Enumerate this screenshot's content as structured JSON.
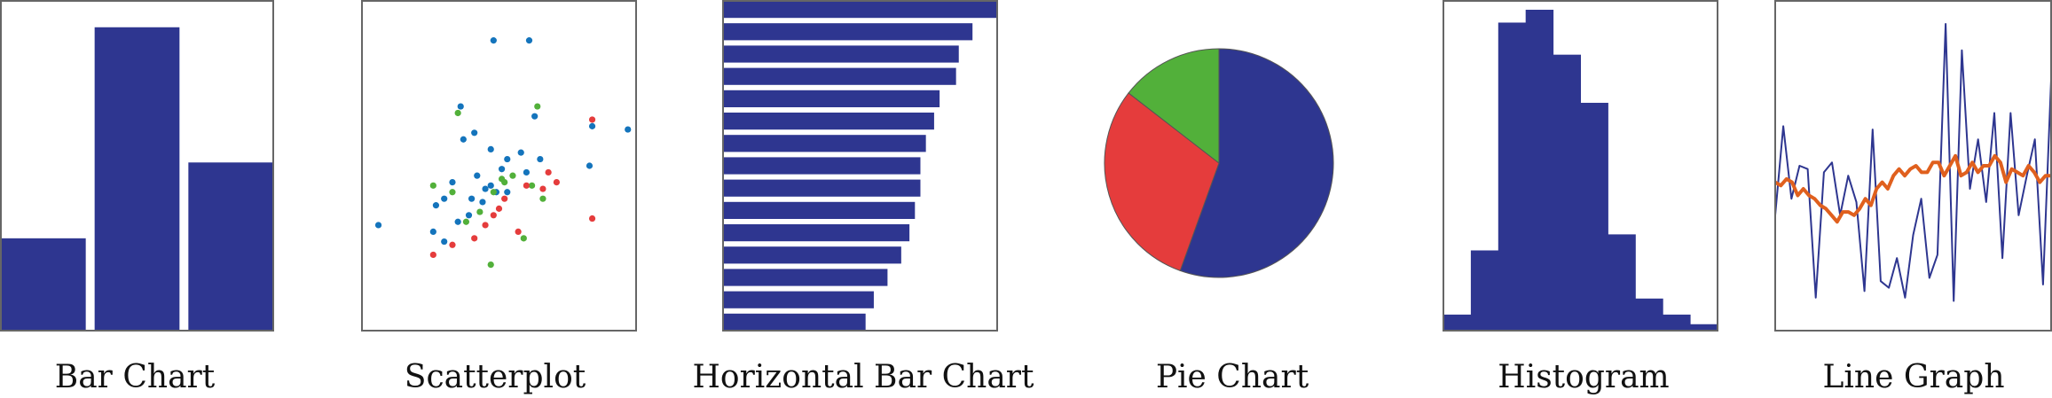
{
  "colors": {
    "navy": "#2E3690",
    "red": "#E53C3C",
    "green": "#52B03A",
    "blue": "#1474BC",
    "orange": "#E0601E",
    "frame": "#666666"
  },
  "panels": {
    "bar": {
      "caption": "Bar Chart"
    },
    "scatter": {
      "caption": "Scatterplot"
    },
    "hbar": {
      "caption": "Horizontal Bar Chart"
    },
    "pie": {
      "caption": "Pie Chart"
    },
    "histogram": {
      "caption": "Histogram"
    },
    "line": {
      "caption": "Line Graph"
    }
  },
  "chart_data": [
    {
      "type": "bar",
      "title": "Bar Chart",
      "categories": [
        "",
        "",
        ""
      ],
      "values": [
        28,
        92,
        51
      ],
      "ylim": [
        0,
        100
      ],
      "grid": false
    },
    {
      "type": "scatter",
      "title": "Scatterplot",
      "xlim": [
        0,
        100
      ],
      "ylim": [
        0,
        100
      ],
      "grid": false,
      "series": [
        {
          "color": "blue",
          "points": [
            [
              48,
              88
            ],
            [
              61,
              88
            ],
            [
              6,
              32
            ],
            [
              83,
              50
            ],
            [
              97,
              61
            ],
            [
              36,
              68
            ],
            [
              41,
              60
            ],
            [
              27,
              38
            ],
            [
              47,
              55
            ],
            [
              53,
              52
            ],
            [
              42,
              47
            ],
            [
              33,
              45
            ],
            [
              30,
              40
            ],
            [
              35,
              33
            ],
            [
              26,
              30
            ],
            [
              39,
              35
            ],
            [
              47,
              44
            ],
            [
              53,
              42
            ],
            [
              60,
              48
            ],
            [
              65,
              52
            ],
            [
              45,
              43
            ],
            [
              49,
              42
            ],
            [
              30,
              27
            ],
            [
              44,
              39
            ],
            [
              63,
              65
            ],
            [
              84,
              62
            ],
            [
              37,
              58
            ],
            [
              58,
              54
            ],
            [
              40,
              40
            ],
            [
              51,
              49
            ]
          ]
        },
        {
          "color": "green",
          "points": [
            [
              35,
              66
            ],
            [
              64,
              68
            ],
            [
              26,
              44
            ],
            [
              33,
              42
            ],
            [
              51,
              46
            ],
            [
              52,
              45
            ],
            [
              48,
              42
            ],
            [
              62,
              44
            ],
            [
              59,
              28
            ],
            [
              38,
              33
            ],
            [
              43,
              36
            ],
            [
              47,
              20
            ],
            [
              55,
              47
            ],
            [
              66,
              40
            ]
          ]
        },
        {
          "color": "red",
          "points": [
            [
              84,
              64
            ],
            [
              71,
              45
            ],
            [
              68,
              48
            ],
            [
              52,
              40
            ],
            [
              50,
              37
            ],
            [
              45,
              32
            ],
            [
              33,
              26
            ],
            [
              26,
              23
            ],
            [
              60,
              44
            ],
            [
              48,
              35
            ],
            [
              84,
              34
            ],
            [
              57,
              30
            ],
            [
              41,
              28
            ],
            [
              66,
              43
            ]
          ]
        }
      ]
    },
    {
      "type": "bar",
      "orientation": "horizontal",
      "title": "Horizontal Bar Chart",
      "values": [
        100,
        91,
        86,
        85,
        79,
        77,
        74,
        72,
        72,
        70,
        68,
        65,
        60,
        55,
        52
      ],
      "xlim": [
        0,
        100
      ],
      "grid": false
    },
    {
      "type": "pie",
      "title": "Pie Chart",
      "slices": [
        {
          "color": "navy",
          "value": 55.5
        },
        {
          "color": "red",
          "value": 30
        },
        {
          "color": "green",
          "value": 14.5
        }
      ]
    },
    {
      "type": "bar",
      "subtype": "histogram",
      "title": "Histogram",
      "values": [
        5,
        25,
        96,
        100,
        86,
        71,
        30,
        10,
        5,
        2
      ],
      "ylim": [
        0,
        100
      ],
      "grid": false
    },
    {
      "type": "line",
      "title": "Line Graph",
      "ylim": [
        0,
        100
      ],
      "grid": false,
      "series": [
        {
          "color": "navy",
          "values": [
            35,
            62,
            40,
            50,
            49,
            10,
            48,
            51,
            35,
            47,
            39,
            12,
            61,
            15,
            13,
            22,
            10,
            29,
            40,
            16,
            23,
            93,
            9,
            85,
            43,
            58,
            39,
            66,
            22,
            66,
            35,
            47,
            58,
            14,
            76
          ]
        },
        {
          "color": "orange",
          "values": [
            45,
            44,
            46,
            45,
            41,
            43,
            41,
            40,
            38,
            37,
            35,
            33,
            36,
            36,
            35,
            37,
            40,
            38,
            43,
            45,
            43,
            47,
            49,
            47,
            49,
            50,
            48,
            48,
            51,
            51,
            47,
            50,
            53,
            47,
            48,
            51,
            48,
            50,
            50,
            53,
            51,
            45,
            49,
            48,
            47,
            50,
            48,
            45,
            47,
            47
          ]
        }
      ]
    }
  ]
}
